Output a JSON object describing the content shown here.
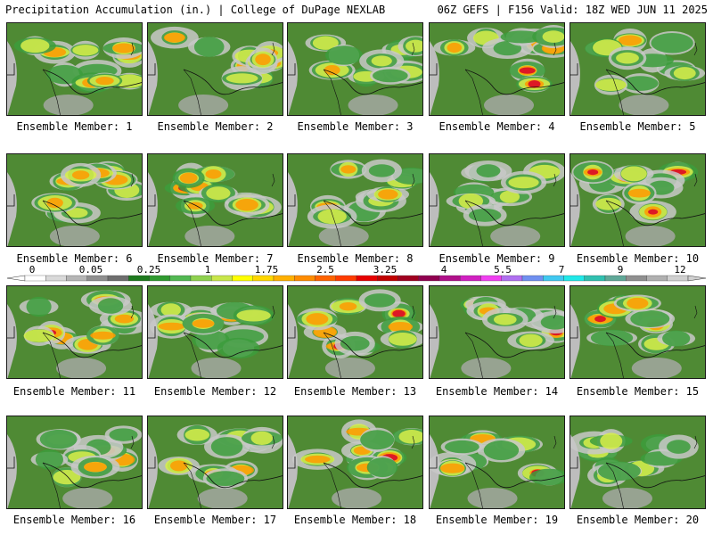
{
  "header": {
    "title": "Precipitation Accumulation (in.) | College of DuPage NEXLAB",
    "run_info": "06Z GEFS | F156 Valid: 18Z WED JUN 11 2025"
  },
  "members": [
    {
      "caption": "Ensemble Member: 1",
      "intensity": 0.62
    },
    {
      "caption": "Ensemble Member: 2",
      "intensity": 0.78
    },
    {
      "caption": "Ensemble Member: 3",
      "intensity": 0.45
    },
    {
      "caption": "Ensemble Member: 4",
      "intensity": 0.74
    },
    {
      "caption": "Ensemble Member: 5",
      "intensity": 0.48
    },
    {
      "caption": "Ensemble Member: 6",
      "intensity": 0.6
    },
    {
      "caption": "Ensemble Member: 7",
      "intensity": 0.7
    },
    {
      "caption": "Ensemble Member: 8",
      "intensity": 0.58
    },
    {
      "caption": "Ensemble Member: 9",
      "intensity": 0.4
    },
    {
      "caption": "Ensemble Member: 10",
      "intensity": 0.8
    },
    {
      "caption": "Ensemble Member: 11",
      "intensity": 0.62
    },
    {
      "caption": "Ensemble Member: 12",
      "intensity": 0.66
    },
    {
      "caption": "Ensemble Member: 13",
      "intensity": 0.72
    },
    {
      "caption": "Ensemble Member: 14",
      "intensity": 0.7
    },
    {
      "caption": "Ensemble Member: 15",
      "intensity": 0.76
    },
    {
      "caption": "Ensemble Member: 16",
      "intensity": 0.6
    },
    {
      "caption": "Ensemble Member: 17",
      "intensity": 0.55
    },
    {
      "caption": "Ensemble Member: 18",
      "intensity": 0.72
    },
    {
      "caption": "Ensemble Member: 19",
      "intensity": 0.66
    },
    {
      "caption": "Ensemble Member: 20",
      "intensity": 0.42
    }
  ],
  "colorbar": {
    "labels": [
      "0",
      "0.05",
      "0.25",
      "1",
      "1.75",
      "2.5",
      "3.25",
      "4",
      "5.5",
      "7",
      "9",
      "12"
    ],
    "colors": [
      "#ffffff",
      "#d9d9d9",
      "#b5b5b5",
      "#8f8f8f",
      "#6e6e6e",
      "#1e7a1e",
      "#2f9a2f",
      "#52b852",
      "#8fd14f",
      "#c8e64a",
      "#ffff00",
      "#ffd700",
      "#ffb000",
      "#ff8c00",
      "#ff6400",
      "#ff3c00",
      "#e60000",
      "#c00000",
      "#a00020",
      "#900050",
      "#b0108a",
      "#d020c0",
      "#f040f0",
      "#b070f0",
      "#7090f0",
      "#40c8f0",
      "#20e8e8",
      "#30c0b0",
      "#60a898",
      "#909090",
      "#b0b0b0",
      "#d0d0d0"
    ]
  }
}
